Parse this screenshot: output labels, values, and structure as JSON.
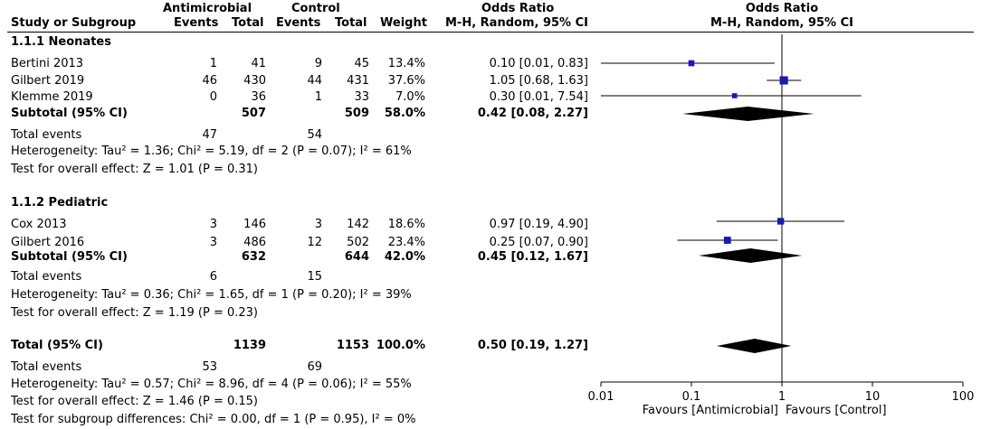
{
  "header": {
    "study": "Study or Subgroup",
    "antimicrobial": "Antimicrobial",
    "control": "Control",
    "events": "Events",
    "total": "Total",
    "weight": "Weight",
    "or_title": "Odds Ratio",
    "or_method": "M-H, Random, 95% CI",
    "plot_title": "Odds Ratio",
    "plot_method": "M-H, Random, 95% CI"
  },
  "groups": [
    {
      "title": "1.1.1 Neonates",
      "studies": [
        {
          "name": "Bertini 2013",
          "e1": "1",
          "t1": "41",
          "e2": "9",
          "t2": "45",
          "weight": "13.4%",
          "ci": "0.10 [0.01, 0.83]"
        },
        {
          "name": "Gilbert 2019",
          "e1": "46",
          "t1": "430",
          "e2": "44",
          "t2": "431",
          "weight": "37.6%",
          "ci": "1.05 [0.68, 1.63]"
        },
        {
          "name": "Klemme 2019",
          "e1": "0",
          "t1": "36",
          "e2": "1",
          "t2": "33",
          "weight": "7.0%",
          "ci": "0.30 [0.01, 7.54]"
        }
      ],
      "subtotal": {
        "label": "Subtotal (95% CI)",
        "t1": "507",
        "t2": "509",
        "weight": "58.0%",
        "ci": "0.42 [0.08, 2.27]"
      },
      "total_events": {
        "label": "Total events",
        "e1": "47",
        "e2": "54"
      },
      "heterogeneity": "Heterogeneity: Tau² = 1.36; Chi² = 5.19, df = 2 (P = 0.07); I² = 61%",
      "overall": "Test for overall effect: Z = 1.01 (P = 0.31)"
    },
    {
      "title": "1.1.2 Pediatric",
      "studies": [
        {
          "name": "Cox 2013",
          "e1": "3",
          "t1": "146",
          "e2": "3",
          "t2": "142",
          "weight": "18.6%",
          "ci": "0.97 [0.19, 4.90]"
        },
        {
          "name": "Gilbert 2016",
          "e1": "3",
          "t1": "486",
          "e2": "12",
          "t2": "502",
          "weight": "23.4%",
          "ci": "0.25 [0.07, 0.90]"
        }
      ],
      "subtotal": {
        "label": "Subtotal (95% CI)",
        "t1": "632",
        "t2": "644",
        "weight": "42.0%",
        "ci": "0.45 [0.12, 1.67]"
      },
      "total_events": {
        "label": "Total events",
        "e1": "6",
        "e2": "15"
      },
      "heterogeneity": "Heterogeneity: Tau² = 0.36; Chi² = 1.65, df = 1 (P = 0.20); I² = 39%",
      "overall": "Test for overall effect: Z = 1.19 (P = 0.23)"
    }
  ],
  "total": {
    "label": "Total (95% CI)",
    "t1": "1139",
    "t2": "1153",
    "weight": "100.0%",
    "ci": "0.50 [0.19, 1.27]"
  },
  "total_events": {
    "label": "Total events",
    "e1": "53",
    "e2": "69"
  },
  "heterogeneity": "Heterogeneity: Tau² = 0.57; Chi² = 8.96, df = 4 (P = 0.06); I² = 55%",
  "overall": "Test for overall effect: Z = 1.46 (P = 0.15)",
  "subgroup_diff": "Test for subgroup differences: Chi² = 0.00, df = 1 (P = 0.95), I² = 0%",
  "chart_data": {
    "type": "forest",
    "title": "Odds Ratio",
    "subtitle": "M-H, Random, 95% CI",
    "xscale": "log",
    "xlim": [
      0.01,
      100
    ],
    "ticks": [
      0.01,
      0.1,
      1,
      10,
      100
    ],
    "tick_labels": [
      "0.01",
      "0.1",
      "1",
      "10",
      "100"
    ],
    "xlabel_left": "Favours [Antimicrobial]",
    "xlabel_right": "Favours [Control]",
    "studies": [
      {
        "name": "Bertini 2013",
        "or": 0.1,
        "lo": 0.01,
        "hi": 0.83,
        "weight": 13.4
      },
      {
        "name": "Gilbert 2019",
        "or": 1.05,
        "lo": 0.68,
        "hi": 1.63,
        "weight": 37.6
      },
      {
        "name": "Klemme 2019",
        "or": 0.3,
        "lo": 0.01,
        "hi": 7.54,
        "weight": 7.0
      },
      {
        "name": "Cox 2013",
        "or": 0.97,
        "lo": 0.19,
        "hi": 4.9,
        "weight": 18.6
      },
      {
        "name": "Gilbert 2016",
        "or": 0.25,
        "lo": 0.07,
        "hi": 0.9,
        "weight": 23.4
      }
    ],
    "diamonds": [
      {
        "name": "Subtotal Neonates",
        "or": 0.42,
        "lo": 0.08,
        "hi": 2.27
      },
      {
        "name": "Subtotal Pediatric",
        "or": 0.45,
        "lo": 0.12,
        "hi": 1.67
      },
      {
        "name": "Total",
        "or": 0.5,
        "lo": 0.19,
        "hi": 1.27
      }
    ],
    "colors": {
      "marker": "#1a1aad",
      "line": "#000000",
      "diamond": "#000000"
    }
  }
}
